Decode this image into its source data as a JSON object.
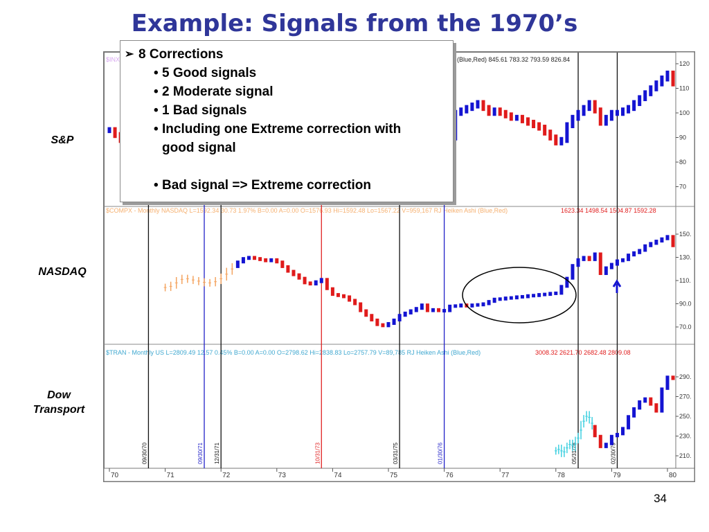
{
  "title": "Example: Signals from the 1970’s",
  "page_number": "34",
  "labels": {
    "sp": "S&P",
    "nasdaq": "NASDAQ",
    "dow_line1": "Dow",
    "dow_line2": "Transport"
  },
  "callout": {
    "heading": "8 Corrections",
    "items": [
      "5 Good signals",
      "2 Moderate signal",
      "1 Bad signals",
      "Including one Extreme correction with good signal",
      "Bad signal => Extreme correction"
    ]
  },
  "colors": {
    "up": "#1414d2",
    "down": "#e01b1b",
    "early_nasdaq": "#f4a460",
    "early_transport": "#40d0e0",
    "title": "#2f3699"
  },
  "panels": {
    "sp_header": "(Blue,Red)  845.61  783.32  793.59  826.84",
    "sp_header_prefix": "$INX",
    "nasdaq_header": "$COMPX - Monthly  NASDAQ  L=1592.34  30.73  1.97%  B=0.00  A=0.00  O=1576.93  Hi=1592.48  Lo=1567.22  V=959,167  RJ Heiken Ashi (Blue,Red)",
    "nasdaq_header_values": "1623.34  1498.54  1504.87  1592.28",
    "transport_header": "$TRAN - Monthly  US  L=2809.49  12.57  0.45%  B=0.00  A=0.00  O=2798.62  Hi=2838.83  Lo=2757.79  V=89,785  RJ Heiken Ashi (Blue,Red)",
    "transport_header_values": "3008.32  2621.70  2682.48  2809.08"
  },
  "chart_data": {
    "type": "candlestick",
    "x_ticks": [
      "70",
      "71",
      "72",
      "73",
      "74",
      "75",
      "76",
      "77",
      "78",
      "79",
      "80"
    ],
    "y_ticks": {
      "sp": [
        "120",
        "110",
        "100",
        "90",
        "80",
        "70"
      ],
      "nasdaq": [
        "150.",
        "130.",
        "110.",
        "90.0",
        "70.0"
      ],
      "transport": [
        "290.",
        "270.",
        "250.",
        "230.",
        "210."
      ]
    },
    "signal_lines": [
      {
        "date": "09/30/70",
        "color": "black",
        "x": 70.7
      },
      {
        "date": "09/30/71",
        "color": "blue",
        "x": 71.7
      },
      {
        "date": "12/31/71",
        "color": "black",
        "x": 72.0
      },
      {
        "date": "10/31/73",
        "color": "red",
        "x": 73.8
      },
      {
        "date": "03/31/75",
        "color": "black",
        "x": 75.2
      },
      {
        "date": "01/30/76",
        "color": "blue",
        "x": 76.0
      },
      {
        "date": "05/31/78",
        "color": "black",
        "x": 78.4
      },
      {
        "date": "02/30/79",
        "color": "black",
        "x": 79.1
      }
    ],
    "series": {
      "sp_x": [
        70,
        70.1,
        70.2,
        70.3,
        76.2,
        76.3,
        76.4,
        76.5,
        76.6,
        76.7,
        76.8,
        76.9,
        77.0,
        77.1,
        77.2,
        77.3,
        77.4,
        77.5,
        77.6,
        77.7,
        77.8,
        77.9,
        78.0,
        78.1,
        78.2,
        78.3,
        78.4,
        78.5,
        78.6,
        78.7,
        78.8,
        78.9,
        79.0,
        79.1,
        79.2,
        79.3,
        79.4,
        79.5,
        79.6,
        79.7,
        79.8,
        79.9,
        80.0,
        80.1
      ],
      "sp": [
        93,
        91,
        89,
        90,
        100,
        101,
        102,
        103,
        104,
        102,
        100,
        101,
        100,
        99,
        98,
        98,
        97,
        96,
        95,
        94,
        92,
        90,
        88,
        89,
        95,
        98,
        100,
        102,
        104,
        101,
        96,
        98,
        100,
        100,
        101,
        102,
        104,
        106,
        108,
        110,
        112,
        114,
        116,
        112
      ],
      "nasdaq_x": [
        71.0,
        71.1,
        71.2,
        71.3,
        71.4,
        71.5,
        71.6,
        71.7,
        71.8,
        71.9,
        72.0,
        72.1,
        72.2,
        72.3,
        72.4,
        72.5,
        72.6,
        72.7,
        72.8,
        72.9,
        73.0,
        73.1,
        73.2,
        73.3,
        73.4,
        73.5,
        73.6,
        73.7,
        73.8,
        73.9,
        74.0,
        74.1,
        74.2,
        74.3,
        74.4,
        74.5,
        74.6,
        74.7,
        74.8,
        74.9,
        75.0,
        75.1,
        75.2,
        75.3,
        75.4,
        75.5,
        75.6,
        75.7,
        75.8,
        75.9,
        76.0,
        76.1,
        76.2,
        76.3,
        76.4,
        76.5,
        76.6,
        76.7,
        76.8,
        76.9,
        77.0,
        77.1,
        77.2,
        77.3,
        77.4,
        77.5,
        77.6,
        77.7,
        77.8,
        77.9,
        78.0,
        78.1,
        78.2,
        78.3,
        78.4,
        78.5,
        78.6,
        78.7,
        78.8,
        78.9,
        79.0,
        79.1,
        79.2,
        79.3,
        79.4,
        79.5,
        79.6,
        79.7,
        79.8,
        79.9,
        80.0,
        80.1
      ],
      "nasdaq": [
        104,
        106,
        110,
        112,
        111,
        110,
        109,
        108,
        108,
        110,
        113,
        118,
        122,
        126,
        129,
        130,
        129,
        128,
        127,
        128,
        126,
        122,
        118,
        115,
        112,
        108,
        107,
        109,
        111,
        103,
        98,
        97,
        96,
        93,
        90,
        84,
        80,
        76,
        72,
        71,
        73,
        76,
        80,
        82,
        84,
        86,
        89,
        84,
        85,
        84,
        84,
        88,
        88,
        89,
        88,
        89,
        89,
        90,
        92,
        94,
        94,
        95,
        95,
        96,
        96,
        97,
        97,
        98,
        98,
        99,
        99,
        105,
        112,
        123,
        128,
        130,
        128,
        133,
        116,
        121,
        124,
        127,
        128,
        132,
        134,
        136,
        140,
        142,
        144,
        146,
        148,
        140
      ],
      "transport_x": [
        78.0,
        78.05,
        78.1,
        78.15,
        78.2,
        78.25,
        78.3,
        78.35,
        78.4,
        78.45,
        78.5,
        78.55,
        78.6,
        78.65,
        78.7,
        78.8,
        78.9,
        79.0,
        79.1,
        79.2,
        79.3,
        79.4,
        79.5,
        79.6,
        79.7,
        79.8,
        79.9,
        80.0,
        80.1
      ],
      "transport": [
        215,
        218,
        212,
        216,
        220,
        223,
        218,
        226,
        230,
        242,
        248,
        252,
        246,
        240,
        230,
        219,
        222,
        230,
        232,
        238,
        250,
        258,
        265,
        268,
        262,
        255,
        278,
        290,
        288
      ]
    }
  }
}
